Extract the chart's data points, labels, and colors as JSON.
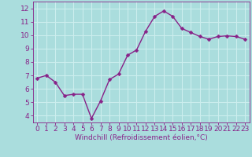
{
  "x": [
    0,
    1,
    2,
    3,
    4,
    5,
    6,
    7,
    8,
    9,
    10,
    11,
    12,
    13,
    14,
    15,
    16,
    17,
    18,
    19,
    20,
    21,
    22,
    23
  ],
  "y": [
    6.8,
    7.0,
    6.5,
    5.5,
    5.6,
    5.6,
    3.8,
    5.1,
    6.7,
    7.1,
    8.5,
    8.9,
    10.3,
    11.4,
    11.8,
    11.4,
    10.5,
    10.2,
    9.9,
    9.7,
    9.9,
    9.95,
    9.9,
    9.7
  ],
  "xlim": [
    -0.5,
    23.5
  ],
  "ylim": [
    3.5,
    12.5
  ],
  "yticks": [
    4,
    5,
    6,
    7,
    8,
    9,
    10,
    11,
    12
  ],
  "xticks": [
    0,
    1,
    2,
    3,
    4,
    5,
    6,
    7,
    8,
    9,
    10,
    11,
    12,
    13,
    14,
    15,
    16,
    17,
    18,
    19,
    20,
    21,
    22,
    23
  ],
  "xlabel": "Windchill (Refroidissement éolien,°C)",
  "line_color": "#882288",
  "marker_color": "#882288",
  "bg_color": "#aadddd",
  "grid_color": "#cceeee",
  "xlabel_color": "#882288",
  "tick_color": "#882288",
  "xlabel_fontsize": 6.5,
  "tick_fontsize": 6.5,
  "line_width": 1.0,
  "marker_size": 2.5
}
